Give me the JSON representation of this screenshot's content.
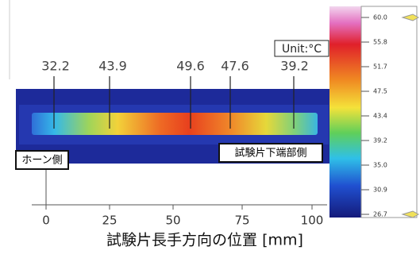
{
  "unit_label": "Unit:°C",
  "temperature_labels": [
    "32.2",
    "43.9",
    "49.6",
    "47.6",
    "39.2"
  ],
  "side_labels": {
    "left": "ホーン側",
    "right": "試験片下端部側"
  },
  "x_axis": {
    "ticks": [
      "0",
      "25",
      "50",
      "75",
      "100"
    ],
    "label": "試験片長手方向の位置 [mm]"
  },
  "color_scale": {
    "ticks": [
      "60.0",
      "55.8",
      "51.7",
      "47.5",
      "43.4",
      "39.2",
      "35.0",
      "30.9",
      "26.7"
    ]
  }
}
